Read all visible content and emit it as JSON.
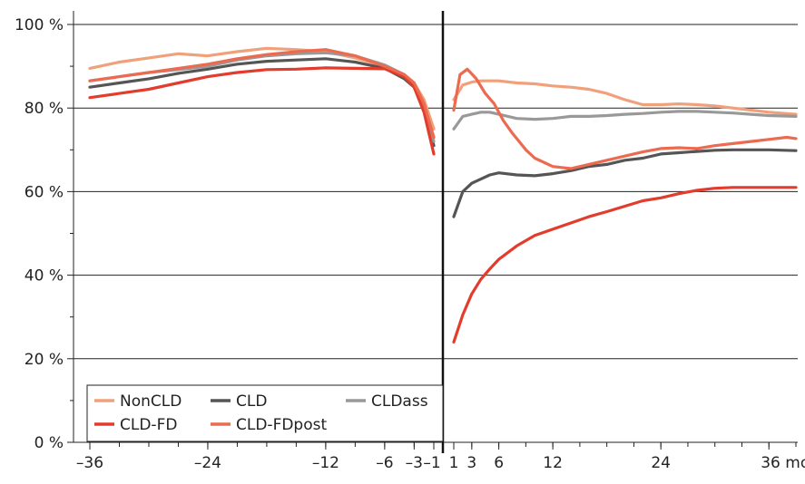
{
  "chart_data": {
    "type": "line",
    "title": "",
    "xlabel": "",
    "ylabel": "",
    "ylim": [
      0,
      100
    ],
    "y_ticks": [
      0,
      20,
      40,
      60,
      80,
      100
    ],
    "y_tick_labels": [
      "0 %",
      "20 %",
      "40 %",
      "60 %",
      "80 %",
      "100 %"
    ],
    "grid": "horizontal",
    "legend_position": "bottom-left",
    "panels": [
      {
        "name": "before",
        "xlim": [
          -36,
          -1
        ],
        "x_tick_values": [
          -36,
          -24,
          -12,
          -6,
          -3,
          -1
        ],
        "x_tick_labels": [
          "–36",
          "–24",
          "–12",
          "–6",
          "–3",
          "–1"
        ]
      },
      {
        "name": "after",
        "xlim": [
          1,
          39
        ],
        "x_tick_values": [
          1,
          3,
          6,
          12,
          24,
          36
        ],
        "x_tick_labels": [
          "1",
          "3",
          "6",
          "12",
          "24",
          "36 mois"
        ]
      }
    ],
    "series": [
      {
        "name": "NonCLD",
        "color": "#f0a07a",
        "before": {
          "x": [
            -36,
            -33,
            -30,
            -27,
            -24,
            -21,
            -18,
            -15,
            -12,
            -9,
            -6,
            -4,
            -3,
            -2,
            -1
          ],
          "y": [
            89.5,
            91,
            92,
            93,
            92.5,
            93.5,
            94.3,
            94,
            93.5,
            92,
            90,
            88,
            86,
            82,
            75
          ]
        },
        "after": {
          "x": [
            1,
            2,
            3,
            4,
            6,
            8,
            10,
            12,
            14,
            16,
            18,
            20,
            22,
            24,
            26,
            28,
            30,
            32,
            34,
            36,
            39
          ],
          "y": [
            82,
            85.5,
            86.2,
            86.5,
            86.5,
            86,
            85.8,
            85.3,
            85,
            84.5,
            83.5,
            82,
            80.8,
            80.8,
            81,
            80.8,
            80.5,
            80,
            79.5,
            79,
            78.5
          ]
        }
      },
      {
        "name": "CLD",
        "color": "#555555",
        "before": {
          "x": [
            -36,
            -33,
            -30,
            -27,
            -24,
            -21,
            -18,
            -15,
            -12,
            -9,
            -6,
            -4,
            -3,
            -2,
            -1
          ],
          "y": [
            85,
            86,
            87,
            88.3,
            89.3,
            90.5,
            91.2,
            91.5,
            91.8,
            91,
            89.5,
            87,
            85,
            80,
            71
          ]
        },
        "after": {
          "x": [
            1,
            2,
            3,
            4,
            5,
            6,
            8,
            10,
            12,
            14,
            16,
            18,
            20,
            22,
            24,
            26,
            28,
            30,
            32,
            34,
            36,
            39
          ],
          "y": [
            54,
            60,
            62,
            63,
            64,
            64.5,
            64,
            63.8,
            64.3,
            65,
            66,
            66.5,
            67.5,
            68,
            69,
            69.3,
            69.6,
            69.9,
            70,
            70,
            70,
            69.8
          ]
        }
      },
      {
        "name": "CLDass",
        "color": "#999999",
        "before": {
          "x": [
            -36,
            -33,
            -30,
            -27,
            -24,
            -21,
            -18,
            -15,
            -12,
            -9,
            -6,
            -4,
            -3,
            -2,
            -1
          ],
          "y": [
            86.5,
            87.5,
            88.5,
            89.2,
            90,
            91.5,
            92.5,
            93,
            93.2,
            92.5,
            90.3,
            88,
            85.5,
            80,
            72
          ]
        },
        "after": {
          "x": [
            1,
            2,
            3,
            4,
            5,
            6,
            8,
            10,
            12,
            14,
            16,
            18,
            20,
            22,
            24,
            26,
            28,
            30,
            32,
            34,
            36,
            39
          ],
          "y": [
            75,
            78,
            78.5,
            79,
            79,
            78.5,
            77.5,
            77.3,
            77.5,
            78,
            78,
            78.2,
            78.5,
            78.7,
            79,
            79.2,
            79.2,
            79,
            78.8,
            78.5,
            78.2,
            78
          ]
        }
      },
      {
        "name": "CLD-FD",
        "color": "#e23c2c",
        "before": {
          "x": [
            -36,
            -33,
            -30,
            -27,
            -24,
            -21,
            -18,
            -15,
            -12,
            -9,
            -6,
            -4,
            -3,
            -2,
            -1
          ],
          "y": [
            82.5,
            83.5,
            84.5,
            86,
            87.5,
            88.5,
            89.2,
            89.3,
            89.6,
            89.5,
            89.4,
            87.5,
            85,
            79,
            69
          ]
        },
        "after": {
          "x": [
            1,
            2,
            3,
            4,
            5,
            6,
            8,
            10,
            12,
            14,
            16,
            18,
            20,
            22,
            24,
            26,
            28,
            30,
            32,
            34,
            36,
            39
          ],
          "y": [
            24,
            30.5,
            35.5,
            39,
            41.5,
            43.8,
            47,
            49.5,
            51,
            52.5,
            54,
            55.2,
            56.5,
            57.8,
            58.5,
            59.5,
            60.3,
            60.8,
            61,
            61,
            61,
            61
          ]
        }
      },
      {
        "name": "CLD-FDpost",
        "color": "#ec6a4f",
        "before": {
          "x": [
            -36,
            -33,
            -30,
            -27,
            -24,
            -21,
            -18,
            -15,
            -12,
            -9,
            -6,
            -4,
            -3,
            -2,
            -1
          ],
          "y": [
            86.5,
            87.5,
            88.5,
            89.5,
            90.5,
            91.8,
            92.8,
            93.5,
            94,
            92.5,
            90,
            88,
            86,
            81,
            73
          ]
        },
        "after": {
          "x": [
            1,
            1.7,
            2.5,
            3.5,
            4.5,
            5.5,
            6.5,
            7.5,
            9,
            10,
            12,
            14,
            16,
            18,
            20,
            22,
            24,
            26,
            28,
            30,
            32,
            34,
            36,
            38,
            39
          ],
          "y": [
            79.5,
            88,
            89.3,
            87,
            83.5,
            81,
            77,
            74,
            70,
            68,
            66,
            65.5,
            66.5,
            67.5,
            68.5,
            69.5,
            70.3,
            70.5,
            70.3,
            71,
            71.5,
            72,
            72.5,
            73,
            72.7
          ]
        }
      }
    ],
    "legend": {
      "rows": [
        [
          "NonCLD",
          "CLD",
          "CLDass"
        ],
        [
          "CLD-FD",
          "CLD-FDpost"
        ]
      ]
    }
  }
}
